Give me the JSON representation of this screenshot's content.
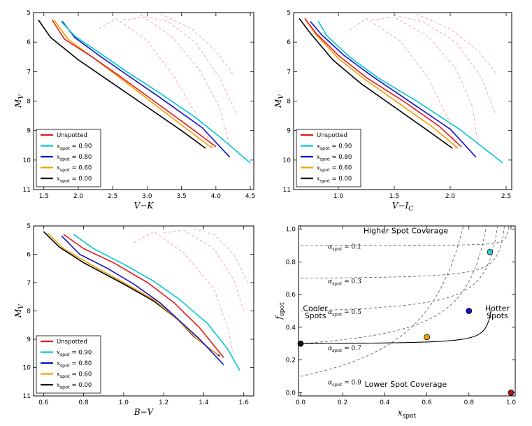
{
  "colors": {
    "unspotted": "#e41a1c",
    "x090": "#00c8d4",
    "x080": "#1010cc",
    "x060": "#f5a000",
    "x000": "#000000",
    "iso": "#f4a0a6",
    "contour": "#555555",
    "grid": "#bbbbbb"
  },
  "chart_data": [
    {
      "id": "vk",
      "type": "line",
      "xlabel": "V−K",
      "ylabel": "M_V",
      "xlim": [
        1.35,
        4.55
      ],
      "ylim": [
        11,
        5
      ],
      "xticks": [
        1.5,
        2.0,
        2.5,
        3.0,
        3.5,
        4.0,
        4.5
      ],
      "xticklabels": [
        "1.5",
        "2.0",
        "2.5",
        "3.0",
        "3.5",
        "4.0",
        "4.5"
      ],
      "yticks": [
        5,
        6,
        7,
        8,
        9,
        10,
        11
      ],
      "yticklabels": [
        "5",
        "6",
        "7",
        "8",
        "9",
        "10",
        "11"
      ],
      "legend_position": "lower-left",
      "legend": [
        {
          "label": "Unspotted",
          "series": "unspotted"
        },
        {
          "label": "x_spot = 0.90",
          "series": "x090"
        },
        {
          "label": "x_spot = 0.80",
          "series": "x080"
        },
        {
          "label": "x_spot = 0.60",
          "series": "x060"
        },
        {
          "label": "x_spot = 0.00",
          "series": "x000"
        }
      ],
      "series": [
        {
          "name": "x000",
          "x": [
            1.42,
            1.6,
            2.0,
            2.5,
            3.0,
            3.5,
            3.85
          ],
          "y": [
            5.25,
            5.85,
            6.6,
            7.4,
            8.2,
            9.0,
            9.6
          ]
        },
        {
          "name": "x060",
          "x": [
            1.65,
            1.85,
            2.2,
            2.6,
            3.1,
            3.55,
            3.95
          ],
          "y": [
            5.25,
            5.9,
            6.5,
            7.2,
            8.1,
            8.9,
            9.6
          ]
        },
        {
          "name": "unspotted",
          "x": [
            1.62,
            1.8,
            2.2,
            2.6,
            3.1,
            3.6,
            4.0
          ],
          "y": [
            5.25,
            5.9,
            6.5,
            7.15,
            8.0,
            8.85,
            9.55
          ]
        },
        {
          "name": "x080",
          "x": [
            1.77,
            1.95,
            2.3,
            2.7,
            3.2,
            3.8,
            4.2
          ],
          "y": [
            5.3,
            5.85,
            6.45,
            7.1,
            7.9,
            8.9,
            9.9
          ]
        },
        {
          "name": "x090",
          "x": [
            1.75,
            1.95,
            2.3,
            2.7,
            3.2,
            3.7,
            4.1,
            4.5
          ],
          "y": [
            5.3,
            5.8,
            6.35,
            7.0,
            7.75,
            8.55,
            9.3,
            10.1
          ]
        }
      ],
      "isochrones": [
        {
          "x": [
            2.3,
            2.55,
            3.0,
            3.4,
            3.75,
            3.95
          ],
          "y": [
            5.55,
            5.2,
            5.95,
            7.2,
            8.6,
            9.6
          ]
        },
        {
          "x": [
            2.65,
            2.95,
            3.35,
            3.75,
            4.05,
            4.2
          ],
          "y": [
            5.25,
            5.15,
            5.8,
            6.9,
            8.2,
            9.5
          ]
        },
        {
          "x": [
            2.9,
            3.3,
            3.7,
            4.05,
            4.3
          ],
          "y": [
            5.1,
            5.3,
            6.0,
            7.2,
            8.4
          ]
        },
        {
          "x": [
            3.2,
            3.65,
            4.0,
            4.25
          ],
          "y": [
            5.05,
            5.55,
            6.3,
            7.1
          ]
        }
      ]
    },
    {
      "id": "vi",
      "type": "line",
      "xlabel": "V−I_C",
      "ylabel": "M_V",
      "xlim": [
        0.6,
        2.55
      ],
      "ylim": [
        11,
        5
      ],
      "xticks": [
        1.0,
        1.5,
        2.0,
        2.5
      ],
      "xticklabels": [
        "1.0",
        "1.5",
        "2.0",
        "2.5"
      ],
      "yticks": [
        5,
        6,
        7,
        8,
        9,
        10,
        11
      ],
      "yticklabels": [
        "5",
        "6",
        "7",
        "8",
        "9",
        "10",
        "11"
      ],
      "legend_position": "lower-left",
      "legend": [
        {
          "label": "Unspotted",
          "series": "unspotted"
        },
        {
          "label": "x_spot = 0.90",
          "series": "x090"
        },
        {
          "label": "x_spot = 0.80",
          "series": "x080"
        },
        {
          "label": "x_spot = 0.60",
          "series": "x060"
        },
        {
          "label": "x_spot = 0.00",
          "series": "x000"
        }
      ],
      "series": [
        {
          "name": "x000",
          "x": [
            0.65,
            0.75,
            0.95,
            1.2,
            1.5,
            1.8,
            2.02
          ],
          "y": [
            5.2,
            5.7,
            6.6,
            7.4,
            8.2,
            9.0,
            9.6
          ]
        },
        {
          "name": "x060",
          "x": [
            0.7,
            0.8,
            1.0,
            1.25,
            1.55,
            1.85,
            2.07
          ],
          "y": [
            5.2,
            5.75,
            6.55,
            7.3,
            8.1,
            8.9,
            9.6
          ]
        },
        {
          "name": "unspotted",
          "x": [
            0.7,
            0.8,
            1.0,
            1.25,
            1.6,
            1.9,
            2.1
          ],
          "y": [
            5.2,
            5.7,
            6.45,
            7.2,
            8.05,
            8.85,
            9.55
          ]
        },
        {
          "name": "x080",
          "x": [
            0.75,
            0.85,
            1.05,
            1.3,
            1.65,
            2.0,
            2.23
          ],
          "y": [
            5.3,
            5.75,
            6.45,
            7.15,
            8.05,
            8.95,
            9.9
          ]
        },
        {
          "name": "x090",
          "x": [
            0.82,
            0.9,
            1.1,
            1.35,
            1.7,
            2.1,
            2.47
          ],
          "y": [
            5.3,
            5.8,
            6.5,
            7.2,
            8.0,
            9.0,
            10.1
          ]
        }
      ],
      "isochrones": [
        {
          "x": [
            1.1,
            1.25,
            1.55,
            1.8,
            1.98,
            2.05
          ],
          "y": [
            5.6,
            5.2,
            5.95,
            7.2,
            8.6,
            9.6
          ]
        },
        {
          "x": [
            1.3,
            1.5,
            1.8,
            2.05,
            2.2,
            2.25
          ],
          "y": [
            5.25,
            5.15,
            5.8,
            6.9,
            8.2,
            9.5
          ]
        },
        {
          "x": [
            1.5,
            1.75,
            2.05,
            2.28,
            2.4
          ],
          "y": [
            5.1,
            5.3,
            6.0,
            7.2,
            8.4
          ]
        },
        {
          "x": [
            1.7,
            2.0,
            2.25,
            2.42
          ],
          "y": [
            5.05,
            5.55,
            6.3,
            7.1
          ]
        }
      ]
    },
    {
      "id": "bv",
      "type": "line",
      "xlabel": "B−V",
      "ylabel": "M_V",
      "xlim": [
        0.55,
        1.65
      ],
      "ylim": [
        11,
        5
      ],
      "xticks": [
        0.6,
        0.8,
        1.0,
        1.2,
        1.4,
        1.6
      ],
      "xticklabels": [
        "0.6",
        "0.8",
        "1.0",
        "1.2",
        "1.4",
        "1.6"
      ],
      "yticks": [
        5,
        6,
        7,
        8,
        9,
        10,
        11
      ],
      "yticklabels": [
        "5",
        "6",
        "7",
        "8",
        "9",
        "10",
        "11"
      ],
      "legend_position": "lower-left",
      "legend": [
        {
          "label": "Unspotted",
          "series": "unspotted"
        },
        {
          "label": "x_spot = 0.90",
          "series": "x090"
        },
        {
          "label": "x_spot = 0.80",
          "series": "x080"
        },
        {
          "label": "x_spot = 0.60",
          "series": "x060"
        },
        {
          "label": "x_spot = 0.00",
          "series": "x000"
        }
      ],
      "series": [
        {
          "name": "x000",
          "x": [
            0.6,
            0.68,
            0.8,
            1.0,
            1.15,
            1.27,
            1.35,
            1.48
          ],
          "y": [
            5.2,
            5.75,
            6.3,
            7.05,
            7.65,
            8.3,
            8.9,
            9.6
          ]
        },
        {
          "name": "x060",
          "x": [
            0.62,
            0.7,
            0.82,
            1.0,
            1.15,
            1.27,
            1.36,
            1.47
          ],
          "y": [
            5.25,
            5.8,
            6.3,
            7.0,
            7.6,
            8.3,
            8.95,
            9.55
          ]
        },
        {
          "name": "unspotted",
          "x": [
            0.7,
            0.8,
            0.95,
            1.12,
            1.25,
            1.38,
            1.5
          ],
          "y": [
            5.3,
            5.8,
            6.3,
            7.0,
            7.7,
            8.6,
            9.65
          ]
        },
        {
          "name": "x080",
          "x": [
            0.69,
            0.78,
            0.92,
            1.05,
            1.18,
            1.28,
            1.38,
            1.5
          ],
          "y": [
            5.35,
            6.0,
            6.5,
            7.05,
            7.7,
            8.35,
            9.0,
            9.9
          ]
        },
        {
          "name": "x090",
          "x": [
            0.75,
            0.85,
            1.0,
            1.15,
            1.28,
            1.42,
            1.52,
            1.58
          ],
          "y": [
            5.3,
            5.8,
            6.35,
            6.95,
            7.6,
            8.45,
            9.35,
            10.1
          ]
        }
      ],
      "isochrones": [
        {
          "x": [
            1.05,
            1.15,
            1.3,
            1.45,
            1.52,
            1.55
          ],
          "y": [
            5.6,
            5.2,
            5.95,
            7.2,
            8.6,
            9.6
          ]
        },
        {
          "x": [
            1.2,
            1.3,
            1.45,
            1.55,
            1.6
          ],
          "y": [
            5.25,
            5.15,
            5.8,
            6.9,
            8.0
          ]
        },
        {
          "x": [
            1.35,
            1.45,
            1.55,
            1.62
          ],
          "y": [
            5.1,
            5.3,
            6.0,
            7.0
          ]
        }
      ]
    },
    {
      "id": "fx",
      "type": "scatter",
      "xlabel": "x_spot",
      "ylabel": "f_spot",
      "xlim": [
        -0.01,
        1.02
      ],
      "ylim": [
        -0.02,
        1.02
      ],
      "xticks": [
        0.0,
        0.2,
        0.4,
        0.6,
        0.8,
        1.0
      ],
      "xticklabels": [
        "0.0",
        "0.2",
        "0.4",
        "0.6",
        "0.8",
        "1.0"
      ],
      "yticks": [
        0.0,
        0.2,
        0.4,
        0.6,
        0.8,
        1.0
      ],
      "yticklabels": [
        "0.0",
        "0.2",
        "0.4",
        "0.6",
        "0.8",
        "1.0"
      ],
      "grid": true,
      "alpha_contours": [
        0.1,
        0.3,
        0.5,
        0.7,
        0.9
      ],
      "points": [
        {
          "x": 0.0,
          "y": 0.3,
          "color": "#111111"
        },
        {
          "x": 0.6,
          "y": 0.34,
          "color": "#f5a000"
        },
        {
          "x": 0.8,
          "y": 0.5,
          "color": "#1010cc"
        },
        {
          "x": 0.9,
          "y": 0.86,
          "color": "#38c9d0"
        },
        {
          "x": 1.0,
          "y": 0.0,
          "color": "#b0151a"
        }
      ],
      "annotations": {
        "top": "Higher Spot Coverage",
        "bottom": "Lower Spot Coverage",
        "left_1": "Cooler",
        "left_2": "Spots",
        "right_1": "Hotter",
        "right_2": "Spots"
      },
      "alpha_labels": [
        "α_spot = 0.1",
        "α_spot = 0.3",
        "α_spot = 0.5",
        "α_spot = 0.7",
        "α_spot = 0.9"
      ]
    }
  ]
}
